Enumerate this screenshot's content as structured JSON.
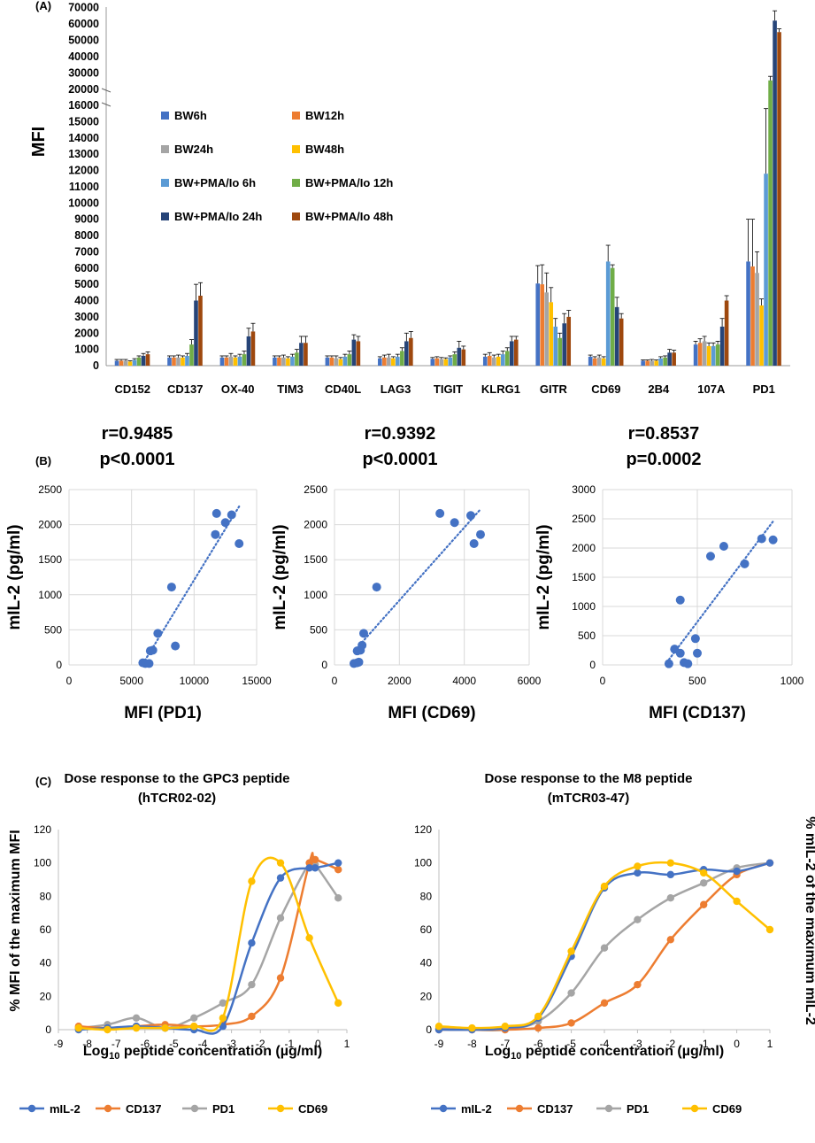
{
  "panel_labels": {
    "a": "(A)",
    "b": "(B)",
    "c": "(C)"
  },
  "colors": {
    "BW6h": "#4472C4",
    "BW12h": "#ED7D31",
    "BW24h": "#A5A5A5",
    "BW48h": "#FFC000",
    "BW+PMA/Io 6h": "#5B9BD5",
    "BW+PMA/Io 12h": "#70AD47",
    "BW+PMA/Io 24h": "#264478",
    "BW+PMA/Io 48h": "#9E480E",
    "mIL-2": "#4472C4",
    "CD137": "#ED7D31",
    "PD1": "#A5A5A5",
    "CD69": "#FFC000"
  },
  "chart_data": [
    {
      "id": "A",
      "type": "bar",
      "ylabel": "MFI",
      "ylim": [
        0,
        70000
      ],
      "axis_break": {
        "from": 16000,
        "to": 20000
      },
      "yticks": [
        0,
        1000,
        2000,
        3000,
        4000,
        5000,
        6000,
        7000,
        8000,
        9000,
        10000,
        11000,
        12000,
        13000,
        14000,
        15000,
        16000,
        20000,
        30000,
        40000,
        50000,
        60000,
        70000
      ],
      "legend": "inside-top-left",
      "categories": [
        "CD152",
        "CD137",
        "OX-40",
        "TIM3",
        "CD40L",
        "LAG3",
        "TIGIT",
        "KLRG1",
        "GITR",
        "CD69",
        "2B4",
        "107A",
        "PD1"
      ],
      "series": [
        {
          "name": "BW6h",
          "values": [
            300,
            500,
            500,
            500,
            500,
            450,
            420,
            550,
            5050,
            550,
            300,
            1300,
            6400
          ],
          "errors": [
            80,
            100,
            100,
            100,
            100,
            100,
            80,
            150,
            1100,
            100,
            50,
            200,
            2600
          ]
        },
        {
          "name": "BW12h",
          "values": [
            300,
            500,
            500,
            500,
            500,
            500,
            450,
            600,
            5000,
            450,
            300,
            1400,
            6100
          ],
          "errors": [
            80,
            100,
            100,
            100,
            100,
            150,
            100,
            200,
            1200,
            100,
            50,
            250,
            2900
          ]
        },
        {
          "name": "BW24h",
          "values": [
            300,
            500,
            550,
            500,
            450,
            500,
            400,
            500,
            4500,
            500,
            300,
            1500,
            5700
          ],
          "errors": [
            80,
            150,
            200,
            150,
            150,
            200,
            100,
            150,
            1200,
            150,
            80,
            300,
            1300
          ]
        },
        {
          "name": "BW48h",
          "values": [
            250,
            500,
            500,
            450,
            400,
            450,
            400,
            550,
            3900,
            450,
            300,
            1200,
            3700
          ],
          "errors": [
            50,
            100,
            100,
            100,
            100,
            100,
            80,
            150,
            900,
            100,
            50,
            200,
            400
          ]
        },
        {
          "name": "BW+PMA/Io 6h",
          "values": [
            350,
            600,
            550,
            550,
            550,
            550,
            500,
            700,
            2400,
            6400,
            450,
            1200,
            11800
          ],
          "errors": [
            80,
            150,
            150,
            150,
            150,
            150,
            100,
            200,
            500,
            1000,
            100,
            200,
            4000
          ]
        },
        {
          "name": "BW+PMA/Io 12h",
          "values": [
            500,
            1300,
            700,
            800,
            700,
            900,
            700,
            900,
            1700,
            6000,
            500,
            1300,
            25500
          ],
          "errors": [
            100,
            300,
            200,
            200,
            200,
            200,
            150,
            200,
            300,
            200,
            100,
            200,
            2500
          ]
        },
        {
          "name": "BW+PMA/Io 24h",
          "values": [
            600,
            4000,
            1800,
            1400,
            1600,
            1500,
            1100,
            1500,
            2600,
            3600,
            800,
            2400,
            62000
          ],
          "errors": [
            150,
            1000,
            500,
            400,
            300,
            500,
            400,
            300,
            600,
            600,
            200,
            500,
            6000
          ]
        },
        {
          "name": "BW+PMA/Io 48h",
          "values": [
            700,
            4300,
            2100,
            1400,
            1500,
            1700,
            1000,
            1600,
            3000,
            2900,
            800,
            4000,
            55000
          ],
          "errors": [
            150,
            800,
            500,
            400,
            300,
            400,
            200,
            200,
            400,
            300,
            150,
            300,
            2000
          ]
        }
      ]
    },
    {
      "id": "B1",
      "type": "scatter",
      "annotation": [
        "r=0.9485",
        "p<0.0001"
      ],
      "xlabel": "MFI (PD1)",
      "ylabel": "mIL-2 (pg/ml)",
      "xlim": [
        0,
        15000
      ],
      "ylim": [
        0,
        2500
      ],
      "xticks": [
        0,
        5000,
        10000,
        15000
      ],
      "yticks": [
        0,
        500,
        1000,
        1500,
        2000,
        2500
      ],
      "grid": true,
      "trendline": "linear",
      "points": [
        {
          "x": 5900,
          "y": 30
        },
        {
          "x": 6100,
          "y": 20
        },
        {
          "x": 6400,
          "y": 20
        },
        {
          "x": 6500,
          "y": 200
        },
        {
          "x": 6700,
          "y": 210
        },
        {
          "x": 7100,
          "y": 450
        },
        {
          "x": 8500,
          "y": 270
        },
        {
          "x": 8200,
          "y": 1110
        },
        {
          "x": 11800,
          "y": 2160
        },
        {
          "x": 11700,
          "y": 1860
        },
        {
          "x": 12500,
          "y": 2030
        },
        {
          "x": 13000,
          "y": 2140
        },
        {
          "x": 13600,
          "y": 1730
        }
      ]
    },
    {
      "id": "B2",
      "type": "scatter",
      "annotation": [
        "r=0.9392",
        "p<0.0001"
      ],
      "xlabel": "MFI (CD69)",
      "ylabel": "mIL-2 (pg/ml)",
      "xlim": [
        0,
        6000
      ],
      "ylim": [
        0,
        2500
      ],
      "xticks": [
        0,
        2000,
        4000,
        6000
      ],
      "yticks": [
        0,
        500,
        1000,
        1500,
        2000,
        2500
      ],
      "grid": true,
      "trendline": "linear",
      "points": [
        {
          "x": 600,
          "y": 20
        },
        {
          "x": 700,
          "y": 30
        },
        {
          "x": 750,
          "y": 40
        },
        {
          "x": 700,
          "y": 200
        },
        {
          "x": 800,
          "y": 210
        },
        {
          "x": 850,
          "y": 280
        },
        {
          "x": 900,
          "y": 450
        },
        {
          "x": 1300,
          "y": 1110
        },
        {
          "x": 3250,
          "y": 2160
        },
        {
          "x": 3700,
          "y": 2030
        },
        {
          "x": 4200,
          "y": 2130
        },
        {
          "x": 4300,
          "y": 1730
        },
        {
          "x": 4500,
          "y": 1860
        }
      ]
    },
    {
      "id": "B3",
      "type": "scatter",
      "annotation": [
        "r=0.8537",
        "p=0.0002"
      ],
      "xlabel": "MFI (CD137)",
      "ylabel": "mIL-2 (pg/ml)",
      "xlim": [
        0,
        1000
      ],
      "ylim": [
        0,
        3000
      ],
      "xticks": [
        0,
        500,
        1000
      ],
      "yticks": [
        0,
        500,
        1000,
        1500,
        2000,
        2500,
        3000
      ],
      "grid": true,
      "trendline": "linear",
      "points": [
        {
          "x": 350,
          "y": 20
        },
        {
          "x": 380,
          "y": 270
        },
        {
          "x": 410,
          "y": 1110
        },
        {
          "x": 410,
          "y": 200
        },
        {
          "x": 430,
          "y": 40
        },
        {
          "x": 450,
          "y": 20
        },
        {
          "x": 490,
          "y": 450
        },
        {
          "x": 500,
          "y": 200
        },
        {
          "x": 570,
          "y": 1860
        },
        {
          "x": 640,
          "y": 2030
        },
        {
          "x": 750,
          "y": 1730
        },
        {
          "x": 840,
          "y": 2160
        },
        {
          "x": 900,
          "y": 2140
        }
      ]
    },
    {
      "id": "C1",
      "type": "line",
      "title": "Dose response to the GPC3 peptide",
      "subtitle": "(hTCR02-02)",
      "xlabel_base": "Log",
      "xlabel_sub": "10",
      "xlabel_rest": " peptide concentration (µg/ml)",
      "ylabel": "% MFI of the maximum MFI",
      "xlim": [
        -9,
        1
      ],
      "ylim": [
        0,
        120
      ],
      "xticks": [
        -9,
        -8,
        -7,
        -6,
        -5,
        -4,
        -3,
        -2,
        -1,
        0,
        1
      ],
      "yticks": [
        0,
        20,
        40,
        60,
        80,
        100,
        120
      ],
      "grid": false,
      "legend": "bottom",
      "x": [
        -8.3,
        -7.3,
        -6.3,
        -5.3,
        -4.3,
        -3.3,
        -2.3,
        -1.3,
        -0.3,
        -0.1,
        0.7
      ],
      "series": [
        {
          "name": "mIL-2",
          "values": [
            0,
            1,
            2,
            1,
            0,
            2,
            52,
            91,
            97,
            97,
            100
          ]
        },
        {
          "name": "CD137",
          "values": [
            2,
            1,
            2,
            3,
            2,
            3,
            8,
            31,
            100,
            102,
            96
          ]
        },
        {
          "name": "PD1",
          "values": [
            1,
            3,
            7,
            1,
            7,
            16,
            27,
            67,
            100,
            99,
            79
          ]
        },
        {
          "name": "CD69",
          "values": [
            1,
            0,
            1,
            1,
            2,
            7,
            89,
            100,
            55,
            null,
            16
          ]
        }
      ]
    },
    {
      "id": "C2",
      "type": "line",
      "title": "Dose response to the M8 peptide",
      "subtitle": "(mTCR03-47)",
      "xlabel_base": "Log",
      "xlabel_sub": "10",
      "xlabel_rest": " peptide concentration (µg/ml)",
      "ylabel": "% mIL-2 of the maximum mIL-2",
      "xlim": [
        -9,
        1
      ],
      "ylim": [
        0,
        120
      ],
      "xticks": [
        -9,
        -8,
        -7,
        -6,
        -5,
        -4,
        -3,
        -2,
        -1,
        0,
        1
      ],
      "yticks": [
        0,
        20,
        40,
        60,
        80,
        100,
        120
      ],
      "grid": false,
      "legend": "bottom",
      "x": [
        -9,
        -8,
        -7,
        -6,
        -5,
        -4,
        -3,
        -2,
        -1,
        0,
        1
      ],
      "series": [
        {
          "name": "mIL-2",
          "values": [
            0,
            0,
            1,
            7,
            44,
            85,
            94,
            93,
            96,
            95,
            100
          ]
        },
        {
          "name": "CD137",
          "values": [
            0,
            0,
            0,
            1,
            4,
            16,
            27,
            54,
            75,
            93,
            100
          ]
        },
        {
          "name": "PD1",
          "values": [
            1,
            0,
            0,
            5,
            22,
            49,
            66,
            79,
            88,
            97,
            100
          ]
        },
        {
          "name": "CD69",
          "values": [
            2,
            1,
            2,
            8,
            47,
            86,
            98,
            100,
            94,
            77,
            60
          ]
        }
      ]
    }
  ]
}
